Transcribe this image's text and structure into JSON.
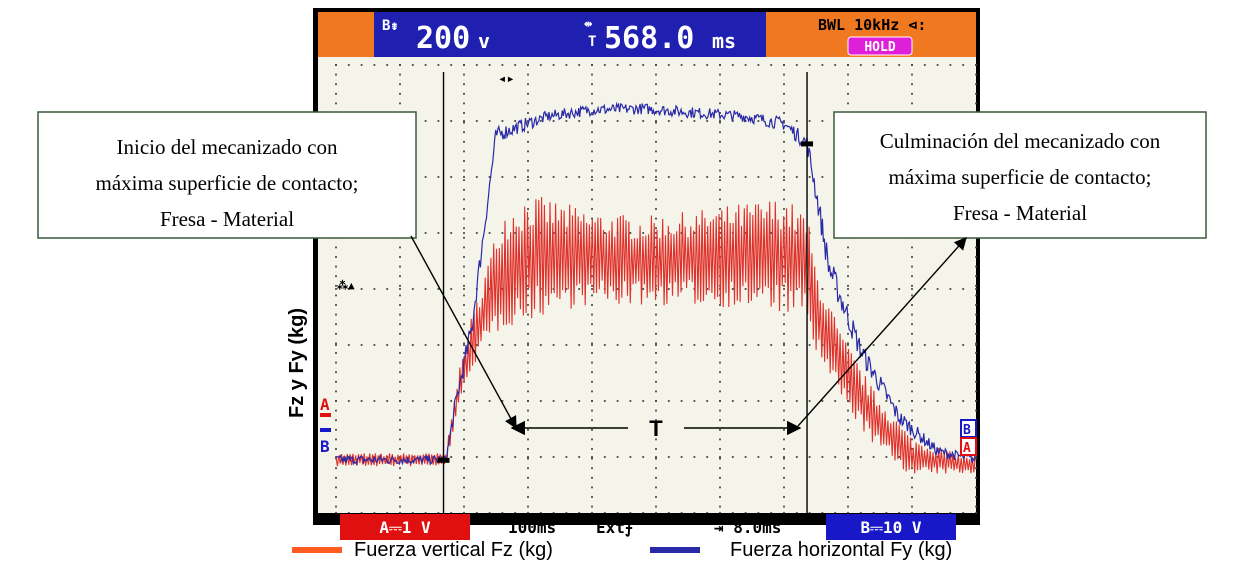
{
  "colors": {
    "series_fz": "#e0302a",
    "series_fy": "#2a2aa8",
    "header_orange": "#f07820",
    "header_blue": "#2020b0",
    "badge_red": "#e01010",
    "badge_blue": "#1818c8",
    "hold_magenta": "#e020d8",
    "screen_bg": "#f4f4ea"
  },
  "scope": {
    "top_left_glyph": "B⇟",
    "volts": "200",
    "volts_unit": "v",
    "time_glyph": "⇹",
    "time_sub": "T",
    "time_value": "568.0",
    "time_unit": "ms",
    "bwl": "BWL 10kHz ⊲:",
    "hold": "HOLD",
    "marker_a": "A",
    "marker_b": "B",
    "arrow_marker": "⁂▲",
    "bottom": {
      "ch_a": "A⎓1 V",
      "timebase": "100ms",
      "trigger": "Ext⨍",
      "delay": "⇥ 8.0ms",
      "ch_b": "B⎓10 V"
    }
  },
  "annotations": {
    "left": [
      "Inicio del mecanizado con",
      "máxima superficie de contacto;",
      "Fresa - Material"
    ],
    "right": [
      "Culminación del mecanizado con",
      "máxima superficie de contacto;",
      "Fresa - Material"
    ],
    "t_label": "T"
  },
  "chart_data": {
    "type": "line",
    "title": "",
    "xlabel": "",
    "ylabel": "Fz y Fy (kg)",
    "xlim": [
      0,
      1000
    ],
    "x_unit": "ms",
    "grid": true,
    "legend_position": "bottom",
    "cursors_ms": [
      168,
      736
    ],
    "series": [
      {
        "name": "Fuerza vertical Fz (kg)",
        "style": "noisy-oscillation",
        "x": [
          0,
          172,
          184,
          210,
          260,
          300,
          340,
          400,
          480,
          560,
          640,
          700,
          736,
          750,
          790,
          840,
          900,
          960,
          1000
        ],
        "y": [
          0.95,
          0.95,
          1.8,
          3.0,
          4.35,
          4.55,
          4.6,
          4.55,
          4.5,
          4.55,
          4.6,
          4.6,
          4.4,
          3.6,
          2.6,
          1.7,
          1.0,
          0.9,
          0.85
        ],
        "amplitude": [
          0.12,
          0.12,
          0.3,
          0.45,
          1.05,
          1.15,
          1.0,
          0.85,
          0.8,
          0.85,
          0.95,
          1.05,
          0.95,
          0.8,
          0.6,
          0.5,
          0.35,
          0.2,
          0.15
        ]
      },
      {
        "name": "Fuerza horizontal Fy (kg)",
        "style": "fuzzy",
        "x": [
          0,
          172,
          186,
          212,
          250,
          330,
          400,
          480,
          560,
          640,
          700,
          736,
          746,
          770,
          820,
          880,
          940,
          1000
        ],
        "y": [
          0.95,
          0.95,
          1.9,
          3.3,
          6.75,
          7.08,
          7.2,
          7.22,
          7.15,
          7.08,
          6.95,
          6.6,
          6.0,
          4.4,
          2.9,
          1.7,
          1.1,
          0.95
        ],
        "amplitude": [
          0.08,
          0.08,
          0.15,
          0.2,
          0.14,
          0.1,
          0.1,
          0.1,
          0.1,
          0.1,
          0.12,
          0.15,
          0.2,
          0.25,
          0.2,
          0.15,
          0.1,
          0.08
        ]
      }
    ]
  }
}
